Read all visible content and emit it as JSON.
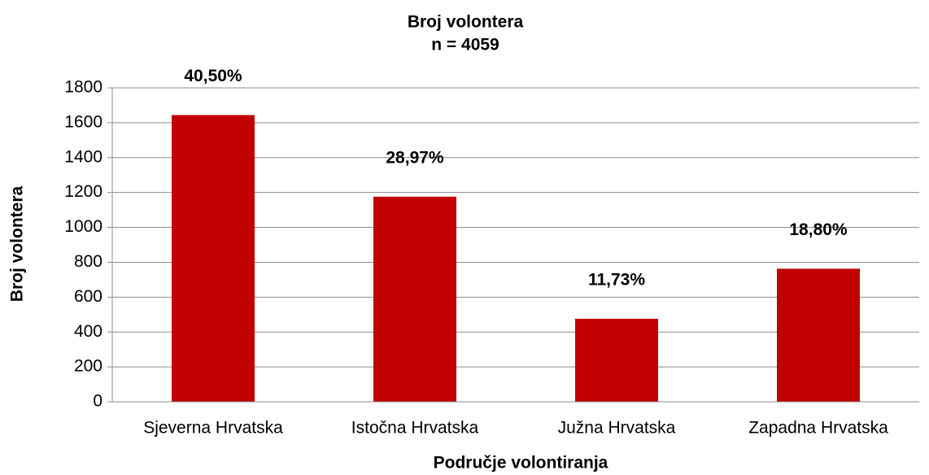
{
  "chart_data": {
    "type": "bar",
    "title": "Broj volontera",
    "subtitle": "n = 4059",
    "x_label": "Područje volontiranja",
    "y_label": "Broj volontera",
    "categories": [
      "Sjeverna Hrvatska",
      "Istočna Hrvatska",
      "Južna Hrvatska",
      "Zapadna Hrvatska"
    ],
    "values": [
      1644,
      1176,
      476,
      763
    ],
    "data_labels": [
      {
        "value": 40.5,
        "label": "40,50%"
      },
      {
        "value": 28.97,
        "label": "28,97%"
      },
      {
        "value": 11.73,
        "label": "11,73%"
      },
      {
        "value": 18.8,
        "label": "18,80%"
      }
    ],
    "color": "#c00000",
    "ylim": [
      0,
      1800
    ],
    "yticks": [
      0,
      200,
      400,
      600,
      800,
      1000,
      1200,
      1400,
      1600,
      1800
    ],
    "grid": true
  }
}
